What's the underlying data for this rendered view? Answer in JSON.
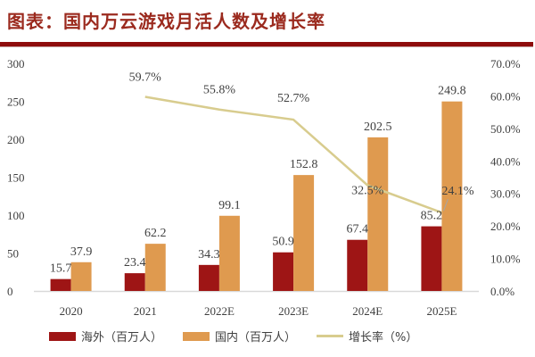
{
  "title": "图表：国内万云游戏月活人数及增长率",
  "colors": {
    "overseas": "#9e1515",
    "domestic": "#df9a4f",
    "growth": "#d8cc8e",
    "title": "#9b2a1e",
    "rule": "#8e0c0c"
  },
  "legend": {
    "overseas": "海外（百万人）",
    "domestic": "国内（百万人）",
    "growth": "增长率（%）"
  },
  "chart_data": {
    "type": "bar",
    "title": "图表：国内万云游戏月活人数及增长率",
    "categories": [
      "2020",
      "2021",
      "2022E",
      "2023E",
      "2024E",
      "2025E"
    ],
    "series": [
      {
        "name": "海外（百万人）",
        "type": "bar",
        "axis": "left",
        "values": [
          15.7,
          23.4,
          34.3,
          50.9,
          67.4,
          85.2
        ]
      },
      {
        "name": "国内（百万人）",
        "type": "bar",
        "axis": "left",
        "values": [
          37.9,
          62.2,
          99.1,
          152.8,
          202.5,
          249.8
        ]
      },
      {
        "name": "增长率（%）",
        "type": "line",
        "axis": "right",
        "values": [
          null,
          59.7,
          55.8,
          52.7,
          32.5,
          24.1
        ]
      }
    ],
    "left_axis": {
      "ylim": [
        0,
        300
      ],
      "ticks": [
        "0",
        "50",
        "100",
        "150",
        "200",
        "250",
        "300"
      ]
    },
    "right_axis": {
      "ylim": [
        0,
        70
      ],
      "ticks": [
        "0.0%",
        "10.0%",
        "20.0%",
        "30.0%",
        "40.0%",
        "50.0%",
        "60.0%",
        "70.0%"
      ]
    },
    "growth_labels": [
      "",
      "59.7%",
      "55.8%",
      "52.7%",
      "32.5%",
      "24.1%"
    ],
    "legend_position": "bottom",
    "grid": false
  }
}
